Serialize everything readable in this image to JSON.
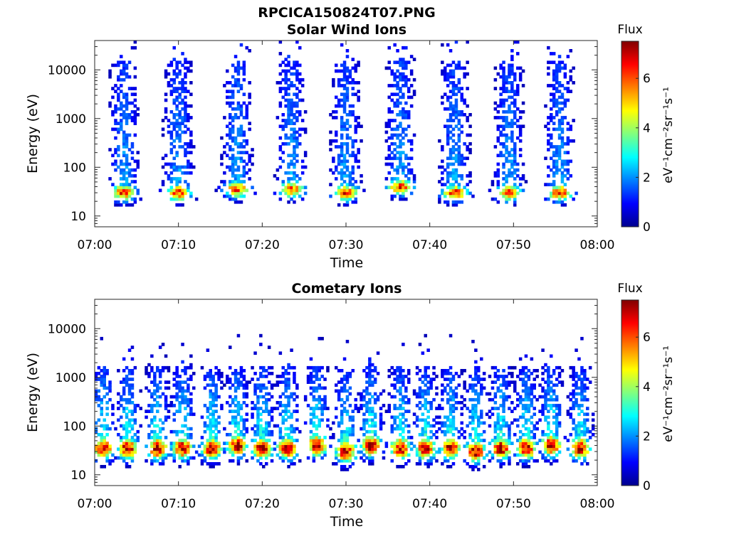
{
  "figure": {
    "title": "RPCICA150824T07.PNG"
  },
  "chart_data": [
    {
      "type": "heatmap",
      "title": "Solar Wind Ions",
      "xlabel": "Time",
      "ylabel": "Energy (eV)",
      "x_ticks": [
        "07:00",
        "07:10",
        "07:20",
        "07:30",
        "07:40",
        "07:50",
        "08:00"
      ],
      "y_ticks": [
        "10",
        "100",
        "1000",
        "10000"
      ],
      "yscale": "log",
      "ylim_eV": [
        6,
        40000
      ],
      "xlim_min": [
        0,
        60
      ],
      "colorbar": {
        "title": "Flux",
        "unit": "eV⁻¹cm⁻²sr⁻¹s⁻¹",
        "ticks": [
          "0",
          "2",
          "4",
          "6"
        ],
        "range": [
          0,
          7.5
        ],
        "colormap": "jet"
      },
      "bursts": [
        {
          "center_min": 3.5,
          "peak_energy_eV": 30
        },
        {
          "center_min": 10.0,
          "peak_energy_eV": 30
        },
        {
          "center_min": 17.0,
          "peak_energy_eV": 35
        },
        {
          "center_min": 23.5,
          "peak_energy_eV": 35
        },
        {
          "center_min": 30.0,
          "peak_energy_eV": 30
        },
        {
          "center_min": 36.5,
          "peak_energy_eV": 40
        },
        {
          "center_min": 43.0,
          "peak_energy_eV": 30
        },
        {
          "center_min": 49.5,
          "peak_energy_eV": 30
        },
        {
          "center_min": 55.5,
          "peak_energy_eV": 30
        }
      ]
    },
    {
      "type": "heatmap",
      "title": "Cometary Ions",
      "xlabel": "Time",
      "ylabel": "Energy (eV)",
      "x_ticks": [
        "07:00",
        "07:10",
        "07:20",
        "07:30",
        "07:40",
        "07:50",
        "08:00"
      ],
      "y_ticks": [
        "10",
        "100",
        "1000",
        "10000"
      ],
      "yscale": "log",
      "ylim_eV": [
        6,
        40000
      ],
      "xlim_min": [
        0,
        60
      ],
      "colorbar": {
        "title": "Flux",
        "unit": "eV⁻¹cm⁻²sr⁻¹s⁻¹",
        "ticks": [
          "0",
          "2",
          "4",
          "6"
        ],
        "range": [
          0,
          7.5
        ],
        "colormap": "jet"
      },
      "bursts": [
        {
          "center_min": 1.0,
          "peak_energy_eV": 35
        },
        {
          "center_min": 4.0,
          "peak_energy_eV": 35
        },
        {
          "center_min": 7.5,
          "peak_energy_eV": 35
        },
        {
          "center_min": 10.5,
          "peak_energy_eV": 35
        },
        {
          "center_min": 14.0,
          "peak_energy_eV": 35
        },
        {
          "center_min": 17.0,
          "peak_energy_eV": 40
        },
        {
          "center_min": 20.0,
          "peak_energy_eV": 35
        },
        {
          "center_min": 23.0,
          "peak_energy_eV": 35
        },
        {
          "center_min": 26.5,
          "peak_energy_eV": 40
        },
        {
          "center_min": 30.0,
          "peak_energy_eV": 30
        },
        {
          "center_min": 33.0,
          "peak_energy_eV": 40
        },
        {
          "center_min": 36.5,
          "peak_energy_eV": 35
        },
        {
          "center_min": 39.5,
          "peak_energy_eV": 35
        },
        {
          "center_min": 42.5,
          "peak_energy_eV": 35
        },
        {
          "center_min": 45.5,
          "peak_energy_eV": 30
        },
        {
          "center_min": 48.5,
          "peak_energy_eV": 35
        },
        {
          "center_min": 51.5,
          "peak_energy_eV": 35
        },
        {
          "center_min": 54.5,
          "peak_energy_eV": 40
        },
        {
          "center_min": 58.0,
          "peak_energy_eV": 35
        }
      ]
    }
  ]
}
